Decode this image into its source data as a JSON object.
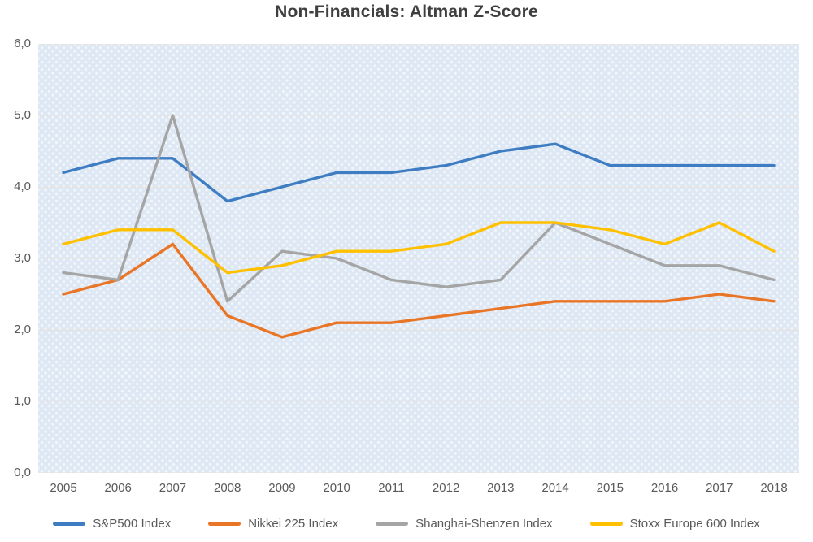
{
  "chart_data": {
    "type": "line",
    "title": "Non-Financials: Altman Z-Score",
    "x": [
      2005,
      2006,
      2007,
      2008,
      2009,
      2010,
      2011,
      2012,
      2013,
      2014,
      2015,
      2016,
      2017,
      2018
    ],
    "series": [
      {
        "name": "S&P500 Index",
        "color": "#3f7dc3",
        "values": [
          4.2,
          4.4,
          4.4,
          3.8,
          4.0,
          4.2,
          4.2,
          4.3,
          4.5,
          4.6,
          4.3,
          4.3,
          4.3,
          4.3
        ]
      },
      {
        "name": "Nikkei 225 Index",
        "color": "#e97526",
        "values": [
          2.5,
          2.7,
          3.2,
          2.2,
          1.9,
          2.1,
          2.1,
          2.2,
          2.3,
          2.4,
          2.4,
          2.4,
          2.5,
          2.4
        ]
      },
      {
        "name": "Shanghai-Shenzen Index",
        "color": "#a5a5a5",
        "values": [
          2.8,
          2.7,
          5.0,
          2.4,
          3.1,
          3.0,
          2.7,
          2.6,
          2.7,
          3.5,
          3.2,
          2.9,
          2.9,
          2.7
        ]
      },
      {
        "name": "Stoxx Europe 600 Index",
        "color": "#ffc000",
        "values": [
          3.2,
          3.4,
          3.4,
          2.8,
          2.9,
          3.1,
          3.1,
          3.2,
          3.5,
          3.5,
          3.4,
          3.2,
          3.5,
          3.1
        ]
      }
    ],
    "ylim": [
      0,
      6
    ],
    "ytick_values": [
      0,
      1,
      2,
      3,
      4,
      5,
      6
    ],
    "ytick_labels": [
      "0,0",
      "1,0",
      "2,0",
      "3,0",
      "4,0",
      "5,0",
      "6,0"
    ],
    "xlabel": "",
    "ylabel": "",
    "grid": true,
    "gridline_color": "#e6e1d8",
    "plot_background": "#dde8f4",
    "legend_position": "bottom",
    "line_width": 3.4
  }
}
